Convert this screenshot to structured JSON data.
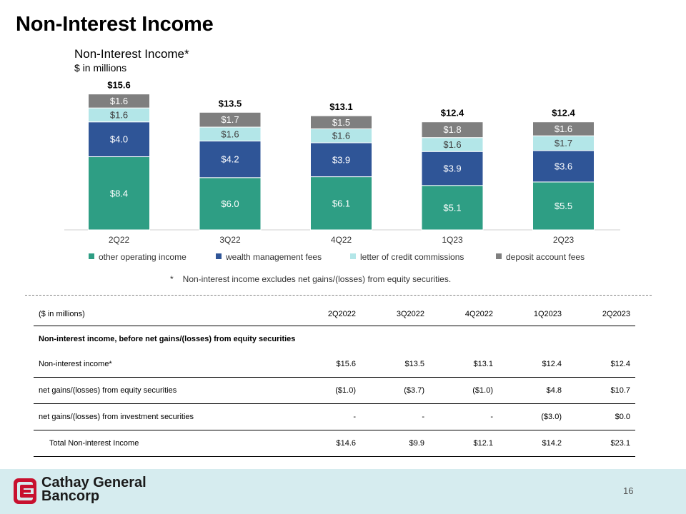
{
  "page": {
    "title": "Non-Interest Income",
    "number": "16"
  },
  "chart": {
    "title": "Non-Interest Income*",
    "subtitle": "$ in millions",
    "footnote_mark": "*",
    "footnote": "Non-interest income excludes net gains/(losses) from equity securities."
  },
  "chart_data": {
    "type": "bar",
    "stacked": true,
    "title": "Non-Interest Income*",
    "subtitle": "$ in millions",
    "categories": [
      "2Q22",
      "3Q22",
      "4Q22",
      "1Q23",
      "2Q23"
    ],
    "totals": [
      15.6,
      13.5,
      13.1,
      12.4,
      12.4
    ],
    "total_labels": [
      "$15.6",
      "$13.5",
      "$13.1",
      "$12.4",
      "$12.4"
    ],
    "ylim": [
      0,
      16
    ],
    "legend_position": "bottom",
    "series": [
      {
        "name": "other operating income",
        "color": "#2e9e84",
        "label_color": "#ffffff",
        "values": [
          8.4,
          6.0,
          6.1,
          5.1,
          5.5
        ],
        "labels": [
          "$8.4",
          "$6.0",
          "$6.1",
          "$5.1",
          "$5.5"
        ]
      },
      {
        "name": "wealth management fees",
        "color": "#2f5597",
        "label_color": "#ffffff",
        "values": [
          4.0,
          4.2,
          3.9,
          3.9,
          3.6
        ],
        "labels": [
          "$4.0",
          "$4.2",
          "$3.9",
          "$3.9",
          "$3.6"
        ]
      },
      {
        "name": "letter of credit commissions",
        "color": "#b3e6e8",
        "label_color": "#404040",
        "values": [
          1.6,
          1.6,
          1.6,
          1.6,
          1.7
        ],
        "labels": [
          "$1.6",
          "$1.6",
          "$1.6",
          "$1.6",
          "$1.7"
        ]
      },
      {
        "name": "deposit account fees",
        "color": "#7f7f7f",
        "label_color": "#ffffff",
        "values": [
          1.6,
          1.7,
          1.5,
          1.8,
          1.6
        ],
        "labels": [
          "$1.6",
          "$1.7",
          "$1.5",
          "$1.8",
          "$1.6"
        ]
      }
    ]
  },
  "table": {
    "header": [
      "($ in millions)",
      "2Q2022",
      "3Q2022",
      "4Q2022",
      "1Q2023",
      "2Q2023"
    ],
    "section_title": "Non-interest income, before net gains/(losses) from equity securities",
    "rows": [
      {
        "label": "Non-interest income*",
        "values": [
          "$15.6",
          "$13.5",
          "$13.1",
          "$12.4",
          "$12.4"
        ]
      },
      {
        "label": "net gains/(losses) from equity securities",
        "values": [
          "($1.0)",
          "($3.7)",
          "($1.0)",
          "$4.8",
          "$10.7"
        ]
      },
      {
        "label": "net gains/(losses) from investment securities",
        "values": [
          "-",
          "-",
          "-",
          "($3.0)",
          "$0.0"
        ]
      },
      {
        "label": "Total Non-interest Income",
        "values": [
          "$14.6",
          "$9.9",
          "$12.1",
          "$14.2",
          "$23.1"
        ]
      }
    ]
  },
  "brand": {
    "name_line1": "Cathay General",
    "name_line2": "Bancorp",
    "logo_color": "#c8102e"
  }
}
